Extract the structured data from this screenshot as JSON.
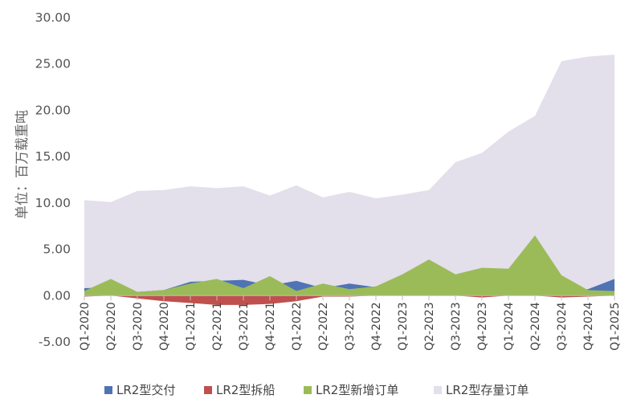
{
  "chart_data": {
    "type": "area",
    "ylabel": "单位：百万载重吨",
    "ylim": [
      -5,
      30
    ],
    "y_ticks": [
      "30.00",
      "25.00",
      "20.00",
      "15.00",
      "10.00",
      "5.00",
      "0.00",
      "-5.00"
    ],
    "y_tick_values": [
      30,
      25,
      20,
      15,
      10,
      5,
      0,
      -5
    ],
    "categories": [
      "Q1-2020",
      "Q2-2020",
      "Q3-2020",
      "Q4-2020",
      "Q1-2021",
      "Q2-2021",
      "Q3-2021",
      "Q4-2021",
      "Q1-2022",
      "Q2-2022",
      "Q3-2022",
      "Q4-2022",
      "Q1-2023",
      "Q2-2023",
      "Q3-2023",
      "Q4-2023",
      "Q1-2024",
      "Q2-2024",
      "Q3-2024",
      "Q4-2024",
      "Q1-2025"
    ],
    "legend_position": "bottom",
    "series": [
      {
        "name": "LR2型存量订单",
        "color": "#e3dfeb",
        "values": [
          10.3,
          10.1,
          11.3,
          11.4,
          11.8,
          11.6,
          11.8,
          10.8,
          11.9,
          10.6,
          11.2,
          10.5,
          10.9,
          11.4,
          14.4,
          15.4,
          17.7,
          19.4,
          25.3,
          25.8,
          26.0
        ]
      },
      {
        "name": "LR2型交付",
        "color": "#4f73b5",
        "values": [
          0.8,
          0.9,
          0.4,
          0.6,
          1.5,
          1.6,
          1.7,
          1.1,
          1.6,
          0.8,
          1.3,
          0.9,
          0.4,
          0.5,
          0.4,
          0.4,
          0.4,
          0.4,
          0.3,
          0.7,
          1.8
        ]
      },
      {
        "name": "LR2型拆船",
        "color": "#c0504d",
        "values": [
          -0.1,
          0.0,
          -0.3,
          -0.6,
          -0.8,
          -1.0,
          -1.0,
          -0.9,
          -0.6,
          -0.1,
          -0.1,
          0.0,
          0.0,
          0.0,
          0.0,
          -0.2,
          0.0,
          0.0,
          -0.2,
          -0.1,
          0.0
        ]
      },
      {
        "name": "LR2型新增订单",
        "color": "#9bbb59",
        "values": [
          0.5,
          1.8,
          0.4,
          0.6,
          1.3,
          1.8,
          0.8,
          2.1,
          0.5,
          1.3,
          0.7,
          1.0,
          2.3,
          3.9,
          2.3,
          3.0,
          2.9,
          6.5,
          2.2,
          0.6,
          0.5
        ]
      }
    ],
    "legend_order": [
      "LR2型交付",
      "LR2型拆船",
      "LR2型新增订单",
      "LR2型存量订单"
    ]
  }
}
